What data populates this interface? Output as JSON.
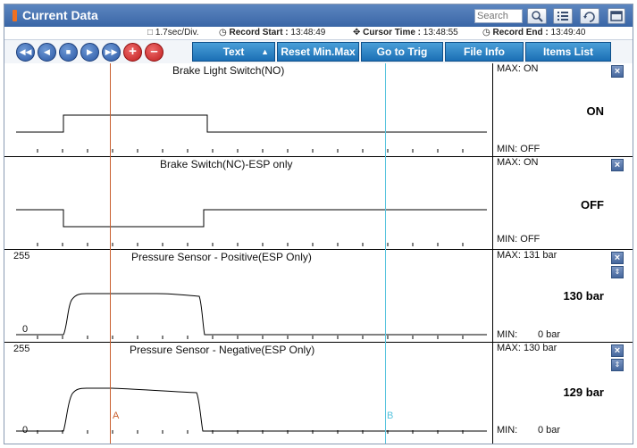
{
  "window": {
    "title": "Current Data",
    "search_placeholder": "Search"
  },
  "info": {
    "division": "1.7sec/Div.",
    "record_start_label": "Record Start :",
    "record_start": "13:48:49",
    "cursor_time_label": "Cursor Time :",
    "cursor_time": "13:48:55",
    "record_end_label": "Record End :",
    "record_end": "13:49:40"
  },
  "toolbar": {
    "text_select": "Text",
    "reset_label": "Reset Min.Max",
    "trig_label": "Go to Trig",
    "fileinfo_label": "File Info",
    "items_label": "Items List"
  },
  "cursors": {
    "a_label": "A",
    "b_label": "B",
    "a_color": "#c96030",
    "b_color": "#58c4de"
  },
  "channels": [
    {
      "name": "Brake Light Switch(NO)",
      "max": "MAX: ON",
      "min": "MIN: OFF",
      "value": "ON"
    },
    {
      "name": "Brake Switch(NC)-ESP only",
      "max": "MAX: ON",
      "min": "MIN: OFF",
      "value": "OFF"
    },
    {
      "name": "Pressure Sensor - Positive(ESP Only)",
      "max": "MAX:   131 bar",
      "min_label": "MIN:",
      "min_value": "0 bar",
      "value": "130 bar",
      "scale_top": "255",
      "scale_bottom": "0"
    },
    {
      "name": "Pressure Sensor - Negative(ESP Only)",
      "max": "MAX:   130 bar",
      "min_label": "MIN:",
      "min_value": "0 bar",
      "value": "129 bar",
      "scale_top": "255",
      "scale_bottom": "0"
    }
  ]
}
